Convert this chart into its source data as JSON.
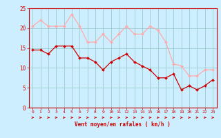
{
  "x": [
    0,
    1,
    2,
    3,
    4,
    5,
    6,
    7,
    8,
    9,
    10,
    11,
    12,
    13,
    14,
    15,
    16,
    17,
    18,
    19,
    20,
    21,
    22,
    23
  ],
  "wind_avg": [
    14.5,
    14.5,
    13.5,
    15.5,
    15.5,
    15.5,
    12.5,
    12.5,
    11.5,
    9.5,
    11.5,
    12.5,
    13.5,
    11.5,
    10.5,
    9.5,
    7.5,
    7.5,
    8.5,
    4.5,
    5.5,
    4.5,
    5.5,
    7.0
  ],
  "wind_gust": [
    20.5,
    22.0,
    20.5,
    20.5,
    20.5,
    23.5,
    20.5,
    16.5,
    16.5,
    18.5,
    16.5,
    18.5,
    20.5,
    18.5,
    18.5,
    20.5,
    19.5,
    16.5,
    11.0,
    10.5,
    8.0,
    8.0,
    9.5,
    9.5
  ],
  "avg_color": "#cc0000",
  "gust_color": "#ffaaaa",
  "bg_color": "#cceeff",
  "grid_color": "#99cccc",
  "xlabel": "Vent moyen/en rafales ( km/h )",
  "xlim": [
    -0.5,
    23.5
  ],
  "ylim": [
    0,
    25
  ],
  "yticks": [
    0,
    5,
    10,
    15,
    20,
    25
  ],
  "tick_color": "#cc0000",
  "spine_color": "#cc0000"
}
